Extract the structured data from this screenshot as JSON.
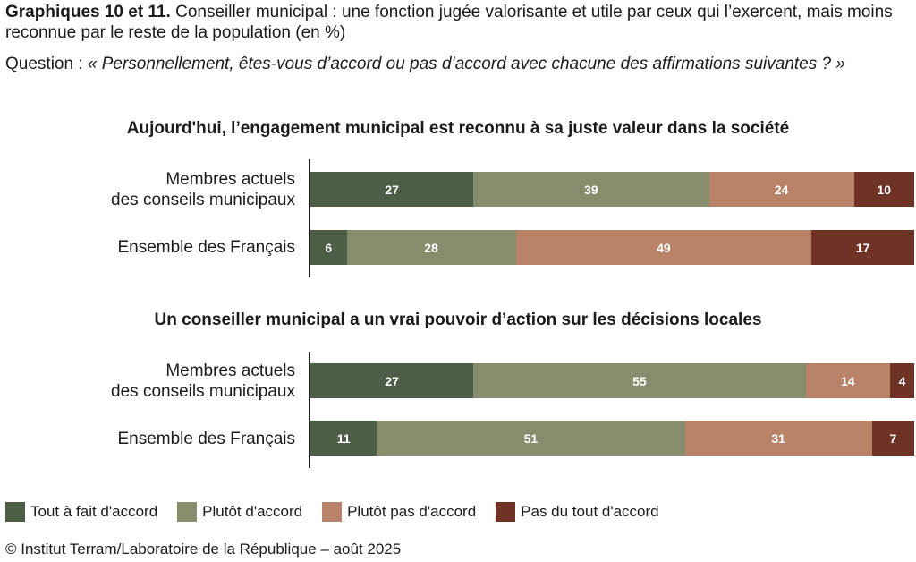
{
  "header": {
    "title_bold": "Graphiques 10 et 11.",
    "title_rest": " Conseiller municipal : une fonction jugée valorisante et utile par ceux qui l’exercent, mais moins reconnue par le reste de la population (en %)",
    "question_prefix": "Question : ",
    "question_text": "« Personnellement, êtes-vous d’accord ou pas d’accord avec chacune des affirmations suivantes ? »"
  },
  "colors": {
    "tout_a_fait": "#4d5e47",
    "plutot": "#878c6c",
    "plutot_pas": "#b9836a",
    "pas_du_tout": "#6e3325"
  },
  "chart_data": [
    {
      "type": "bar",
      "stacked": true,
      "orientation": "horizontal",
      "title": "Aujourd'hui, l’engagement municipal est reconnu à sa juste valeur dans la société",
      "categories": [
        "Membres actuels\ndes conseils municipaux",
        "Ensemble des Français"
      ],
      "series": [
        {
          "name": "Tout à fait d'accord",
          "values": [
            27,
            6
          ]
        },
        {
          "name": "Plutôt d'accord",
          "values": [
            39,
            28
          ]
        },
        {
          "name": "Plutôt pas d'accord",
          "values": [
            24,
            49
          ]
        },
        {
          "name": "Pas du tout d'accord",
          "values": [
            10,
            17
          ]
        }
      ]
    },
    {
      "type": "bar",
      "stacked": true,
      "orientation": "horizontal",
      "title": "Un conseiller municipal a un vrai pouvoir d’action sur les décisions locales",
      "categories": [
        "Membres actuels\ndes conseils municipaux",
        "Ensemble des Français"
      ],
      "series": [
        {
          "name": "Tout à fait d'accord",
          "values": [
            27,
            11
          ]
        },
        {
          "name": "Plutôt d'accord",
          "values": [
            55,
            51
          ]
        },
        {
          "name": "Plutôt pas d'accord",
          "values": [
            14,
            31
          ]
        },
        {
          "name": "Pas du tout d'accord",
          "values": [
            4,
            7
          ]
        }
      ]
    }
  ],
  "legend": [
    {
      "label": "Tout à fait d'accord",
      "color_key": "tout_a_fait"
    },
    {
      "label": "Plutôt d'accord",
      "color_key": "plutot"
    },
    {
      "label": "Plutôt pas d'accord",
      "color_key": "plutot_pas"
    },
    {
      "label": "Pas du tout d'accord",
      "color_key": "pas_du_tout"
    }
  ],
  "source": "© Institut Terram/Laboratoire de la République – août 2025"
}
